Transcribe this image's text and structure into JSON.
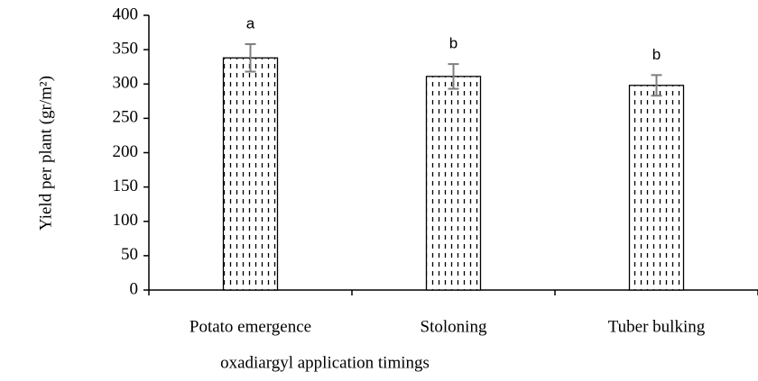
{
  "chart_data": {
    "type": "bar",
    "x_label": "oxadiargyl application timings",
    "y_label": "Yield per plant (gr/m²)",
    "categories": [
      "Potato emergence",
      "Stoloning",
      "Tuber bulking"
    ],
    "values": [
      338,
      311,
      298
    ],
    "errors": [
      20,
      18,
      15
    ],
    "annotations": [
      "a",
      "b",
      "b"
    ],
    "color": "#000000",
    "error_color": "#7f7f7f",
    "ylim": [
      0,
      400
    ],
    "yticks": [
      0,
      50,
      100,
      150,
      200,
      250,
      300,
      350,
      400
    ],
    "grid": false
  }
}
